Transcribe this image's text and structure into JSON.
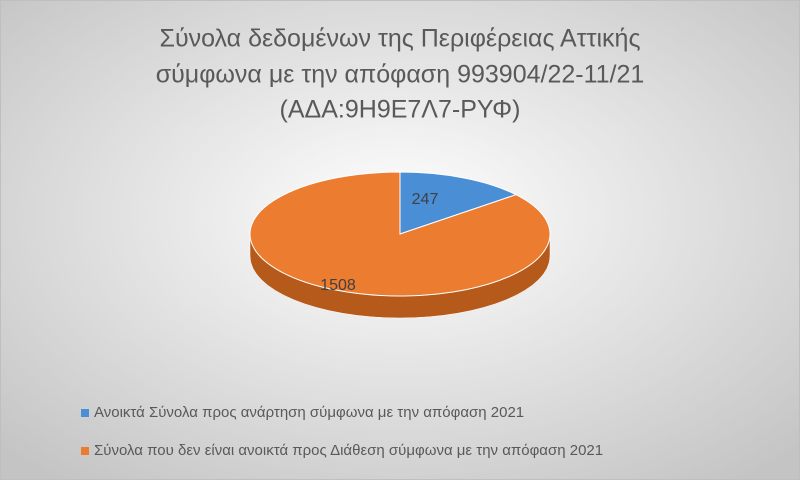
{
  "chart_data": {
    "type": "pie",
    "title": [
      "Σύνολα δεδομένων της Περιφέρειας Αττικής",
      "σύμφωνα με την απόφαση 993904/22-11/21",
      "(ΑΔΑ:9Η9Ε7Λ7-ΡΥΦ)"
    ],
    "categories": [
      "Ανοικτά Σύνολα προς ανάρτηση σύμφωνα με την απόφαση 2021",
      "Σύνολα που δεν είναι ανοικτά προς Διάθεση σύμφωνα με την απόφαση 2021"
    ],
    "values": [
      247,
      1508
    ],
    "colors": [
      "#4a8ed6",
      "#ec7c30"
    ],
    "side_colors": [
      "#2f68a5",
      "#b65a1c"
    ]
  }
}
